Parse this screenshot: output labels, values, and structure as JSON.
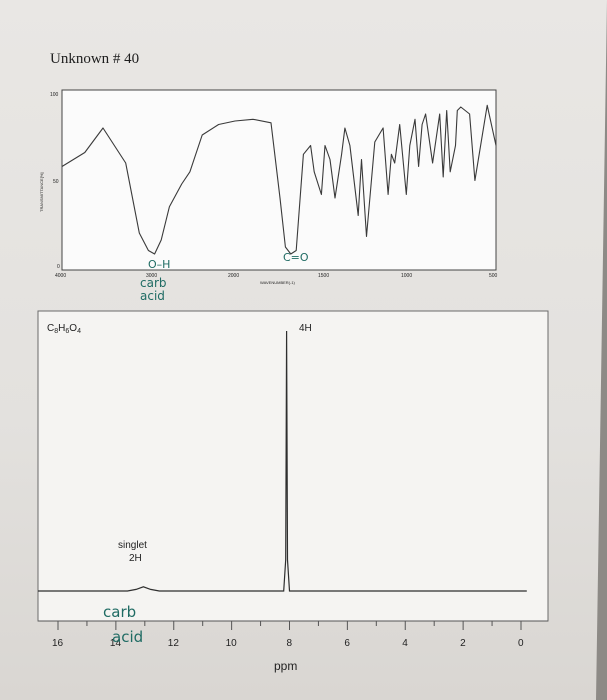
{
  "title": "Unknown # 40",
  "ir": {
    "y_ticks": [
      "100",
      "50",
      "0"
    ],
    "x_ticks": [
      "4000",
      "3000",
      "2000",
      "1500",
      "1000",
      "500"
    ],
    "y_label": "TRANSMITTANCE[%]",
    "x_label": "WAVENUMBER(-1)",
    "annotations": [
      "O–H",
      "carb",
      "acid",
      "C=O"
    ]
  },
  "nmr": {
    "formula": "C8H6O4",
    "peak_label": "4H",
    "singlet_label_1": "singlet",
    "singlet_label_2": "2H",
    "x_ticks": [
      "16",
      "14",
      "12",
      "10",
      "8",
      "6",
      "4",
      "2",
      "0"
    ],
    "x_label": "ppm",
    "hand_notes": [
      "carb",
      "acid"
    ]
  },
  "chart_data": [
    {
      "type": "line",
      "title": "",
      "xlabel": "WAVENUMBER(-1)",
      "ylabel": "TRANSMITTANCE[%]",
      "xlim": [
        4000,
        500
      ],
      "ylim": [
        0,
        100
      ],
      "x_reversed": true,
      "series": [
        {
          "x": [
            4000,
            3750,
            3550,
            3300,
            3150,
            3050,
            2980,
            2900,
            2800,
            2650,
            2550,
            2400,
            2200,
            2000,
            1900,
            1800,
            1750,
            1720,
            1690,
            1660,
            1620,
            1580,
            1560,
            1520,
            1500,
            1470,
            1440,
            1400,
            1380,
            1350,
            1300,
            1280,
            1250,
            1200,
            1150,
            1120,
            1100,
            1080,
            1050,
            1010,
            990,
            960,
            940,
            920,
            900,
            860,
            820,
            800,
            780,
            760,
            730,
            720,
            700,
            650,
            620,
            550,
            500
          ],
          "y": [
            58,
            66,
            80,
            60,
            20,
            10,
            8,
            16,
            35,
            48,
            55,
            76,
            82,
            84,
            85,
            83,
            40,
            12,
            8,
            10,
            65,
            70,
            55,
            42,
            70,
            62,
            40,
            65,
            80,
            70,
            30,
            62,
            18,
            72,
            80,
            42,
            65,
            60,
            82,
            42,
            70,
            85,
            58,
            82,
            88,
            60,
            88,
            52,
            90,
            55,
            70,
            90,
            92,
            88,
            50,
            93,
            70
          ]
        }
      ],
      "annotations": [
        {
          "text": "O–H carb acid",
          "x": 3000
        },
        {
          "text": "C=O",
          "x": 1690
        }
      ]
    },
    {
      "type": "line",
      "title": "C8H6O4",
      "xlabel": "ppm",
      "ylabel": "",
      "xlim": [
        16,
        0
      ],
      "ylim": [
        0,
        100
      ],
      "x_reversed": true,
      "series": [
        {
          "x": [
            16.8,
            13.6,
            13.3,
            13.05,
            12.8,
            12.5,
            8.2,
            8.13,
            8.1,
            8.07,
            8.0,
            -0.2
          ],
          "y": [
            0,
            0,
            0.6,
            1.6,
            0.6,
            0,
            0,
            12,
            100,
            12,
            0,
            0
          ]
        }
      ],
      "peaks": [
        {
          "ppm": 13.05,
          "label": "singlet 2H"
        },
        {
          "ppm": 8.1,
          "label": "4H"
        }
      ]
    }
  ]
}
